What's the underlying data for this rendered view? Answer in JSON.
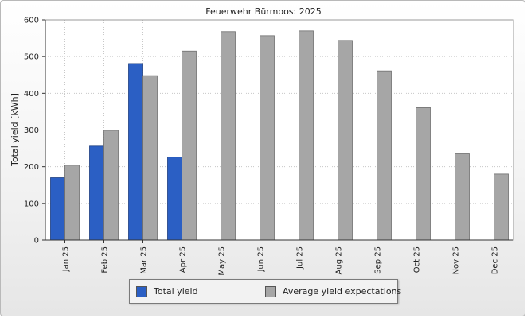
{
  "chart_data": {
    "type": "bar",
    "title": "Feuerwehr Bürmoos: 2025",
    "xlabel": "",
    "ylabel": "Total yield [kWh]",
    "ylim": [
      0,
      600
    ],
    "yticks": [
      0,
      100,
      200,
      300,
      400,
      500,
      600
    ],
    "categories": [
      "Jan 25",
      "Feb 25",
      "Mar 25",
      "Apr 25",
      "May 25",
      "Jun 25",
      "Jul 25",
      "Aug 25",
      "Sep 25",
      "Oct 25",
      "Nov 25",
      "Dec 25"
    ],
    "series": [
      {
        "name": "Total yield",
        "color": "#2b5fc4",
        "values": [
          170,
          256,
          481,
          226,
          null,
          null,
          null,
          null,
          null,
          null,
          null,
          null
        ]
      },
      {
        "name": "Average yield expectations",
        "color": "#a6a6a6",
        "values": [
          204,
          299,
          448,
          515,
          568,
          557,
          570,
          544,
          461,
          361,
          235,
          180
        ]
      }
    ],
    "grid": true,
    "legend_position": "bottom"
  }
}
